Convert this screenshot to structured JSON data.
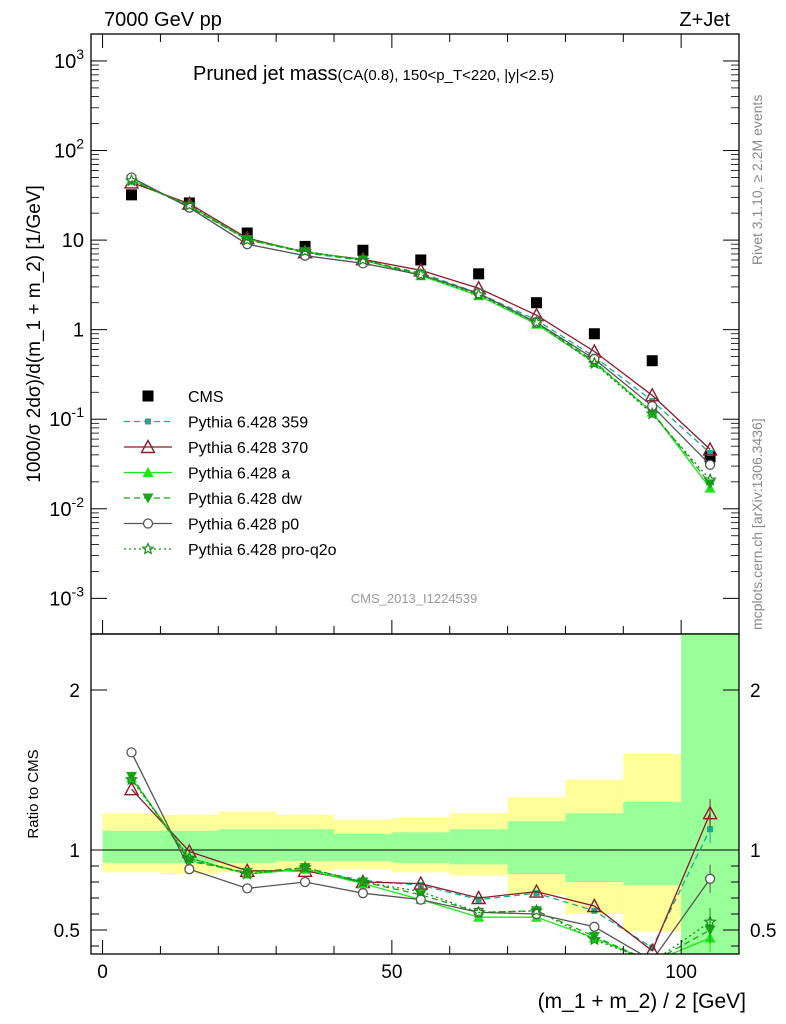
{
  "header": {
    "left": "7000 GeV pp",
    "right": "Z+Jet"
  },
  "side_labels": {
    "rivet": "Rivet 3.1.10, ≥ 2.2M events",
    "mcplots": "mcplots.cern.ch [arXiv:1306.3436]"
  },
  "analysis_id": "CMS_2013_I1224539",
  "chart_data": [
    {
      "type": "line",
      "panel": "main",
      "title": "Pruned jet mass",
      "title_suffix": "(CA(0.8), 150<p_T<220, |y|<2.5)",
      "ylabel": "1000/σ 2dσ)/d(m_1 + m_2) [1/GeV]",
      "yscale": "log",
      "ylim": [
        0.0004,
        2000
      ],
      "xlim": [
        -2,
        110
      ],
      "ytick_labels": [
        "10^-3",
        "10^-2",
        "10^-1",
        "1",
        "10",
        "10^2",
        "10^3"
      ],
      "x": [
        5,
        15,
        25,
        35,
        45,
        55,
        65,
        75,
        85,
        95,
        105
      ],
      "series": [
        {
          "name": "CMS",
          "color": "#000000",
          "marker": "square",
          "line": "none",
          "values": [
            32,
            26,
            12,
            8.5,
            7.7,
            6.0,
            4.2,
            2.0,
            0.9,
            0.45,
            0.038
          ]
        },
        {
          "name": "Pythia 6.428 359",
          "color": "#1aaa8c",
          "marker": "square-small",
          "line": "dashed",
          "values": [
            47,
            24,
            10.2,
            7.2,
            5.9,
            4.3,
            2.55,
            1.28,
            0.5,
            0.16,
            0.042
          ]
        },
        {
          "name": "Pythia 6.428 370",
          "color": "#8b1a2b",
          "marker": "triangle-open",
          "line": "solid",
          "values": [
            44,
            25.5,
            10.5,
            7.3,
            6.1,
            4.6,
            2.9,
            1.45,
            0.57,
            0.185,
            0.046
          ]
        },
        {
          "name": "Pythia 6.428 a",
          "color": "#1ee61e",
          "marker": "triangle",
          "line": "solid",
          "values": [
            47,
            24,
            10.2,
            7.4,
            6.0,
            4.0,
            2.4,
            1.15,
            0.43,
            0.12,
            0.017
          ]
        },
        {
          "name": "Pythia 6.428 dw",
          "color": "#17a817",
          "marker": "triangle-down",
          "line": "dashed",
          "values": [
            47,
            23.5,
            10.1,
            7.4,
            6.0,
            4.2,
            2.5,
            1.2,
            0.44,
            0.12,
            0.019
          ]
        },
        {
          "name": "Pythia 6.428 p0",
          "color": "#555555",
          "marker": "circle-open",
          "line": "solid",
          "values": [
            50,
            23,
            9.0,
            6.7,
            5.5,
            4.1,
            2.55,
            1.2,
            0.47,
            0.14,
            0.031
          ]
        },
        {
          "name": "Pythia 6.428 pro-q2o",
          "color": "#1a8c1a",
          "marker": "star-open",
          "line": "dotted",
          "values": [
            46,
            24.5,
            10.0,
            7.5,
            6.0,
            4.1,
            2.45,
            1.2,
            0.42,
            0.115,
            0.021
          ]
        }
      ]
    },
    {
      "type": "line",
      "panel": "ratio",
      "ylabel": "Ratio to CMS",
      "xlabel": "(m_1 + m_2) / 2 [GeV]",
      "ylim": [
        0.35,
        2.35
      ],
      "xlim": [
        -2,
        110
      ],
      "ytick_labels": [
        "0.5",
        "1",
        "2"
      ],
      "xtick_labels": [
        "0",
        "50",
        "100"
      ],
      "x": [
        5,
        15,
        25,
        35,
        45,
        55,
        65,
        75,
        85,
        95,
        105
      ],
      "bands": {
        "edges": [
          0,
          10,
          20,
          30,
          40,
          50,
          60,
          70,
          80,
          90,
          100,
          110
        ],
        "yellow": [
          [
            0.86,
            1.23
          ],
          [
            0.85,
            1.22
          ],
          [
            0.86,
            1.24
          ],
          [
            0.87,
            1.22
          ],
          [
            0.88,
            1.19
          ],
          [
            0.86,
            1.2
          ],
          [
            0.84,
            1.23
          ],
          [
            0.72,
            1.33
          ],
          [
            0.6,
            1.44
          ],
          [
            0.49,
            1.6
          ],
          [
            0.35,
            2.35
          ]
        ],
        "green": [
          [
            0.92,
            1.12
          ],
          [
            0.92,
            1.12
          ],
          [
            0.92,
            1.13
          ],
          [
            0.93,
            1.13
          ],
          [
            0.93,
            1.1
          ],
          [
            0.92,
            1.11
          ],
          [
            0.91,
            1.13
          ],
          [
            0.85,
            1.18
          ],
          [
            0.8,
            1.23
          ],
          [
            0.78,
            1.3
          ],
          [
            0.35,
            2.35
          ]
        ]
      },
      "series": [
        {
          "name": "Pythia 6.428 359",
          "values": [
            1.45,
            0.94,
            0.85,
            0.88,
            0.81,
            0.78,
            0.69,
            0.73,
            0.62,
            0.39,
            1.13
          ]
        },
        {
          "name": "Pythia 6.428 370",
          "values": [
            1.38,
            0.99,
            0.87,
            0.87,
            0.8,
            0.79,
            0.7,
            0.74,
            0.65,
            0.37,
            1.23
          ]
        },
        {
          "name": "Pythia 6.428 a",
          "values": [
            1.45,
            0.95,
            0.85,
            0.88,
            0.79,
            0.69,
            0.58,
            0.58,
            0.45,
            0.3,
            0.45
          ]
        },
        {
          "name": "Pythia 6.428 dw",
          "values": [
            1.46,
            0.93,
            0.86,
            0.89,
            0.8,
            0.72,
            0.61,
            0.62,
            0.46,
            0.3,
            0.5
          ]
        },
        {
          "name": "Pythia 6.428 p0",
          "values": [
            1.61,
            0.88,
            0.76,
            0.8,
            0.73,
            0.69,
            0.61,
            0.6,
            0.52,
            0.31,
            0.82
          ]
        },
        {
          "name": "Pythia 6.428 pro-q2o",
          "values": [
            1.44,
            0.95,
            0.85,
            0.89,
            0.8,
            0.74,
            0.61,
            0.62,
            0.44,
            0.3,
            0.55
          ]
        }
      ]
    }
  ]
}
